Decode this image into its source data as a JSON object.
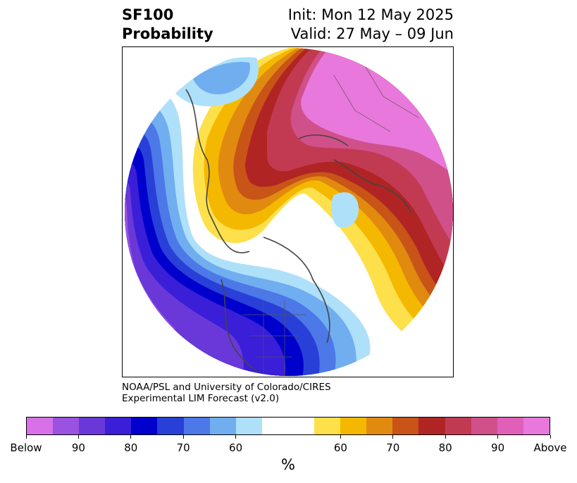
{
  "title": {
    "left_line1": "SF100",
    "left_line2": "Probability",
    "right_line1": "Init: Mon 12 May 2025",
    "right_line2": "Valid: 27 May – 09 Jun"
  },
  "credit": {
    "line1": "NOAA/PSL and University of Colorado/CIRES",
    "line2": "Experimental LIM Forecast (v2.0)"
  },
  "colorbar": {
    "colors": [
      "#d870e8",
      "#9a52e0",
      "#6a38d8",
      "#3a1ed8",
      "#0000cc",
      "#2840d8",
      "#4c78e8",
      "#70aef0",
      "#aee0fa",
      "#ffffff",
      "#ffffff",
      "#fde04a",
      "#f4b800",
      "#e08a10",
      "#c85418",
      "#b02424",
      "#c23a52",
      "#d0508a",
      "#e060b8",
      "#e878dc"
    ],
    "tick_labels": [
      "Below",
      "90",
      "80",
      "70",
      "60",
      "60",
      "70",
      "80",
      "90",
      "Above"
    ],
    "unit": "%"
  }
}
